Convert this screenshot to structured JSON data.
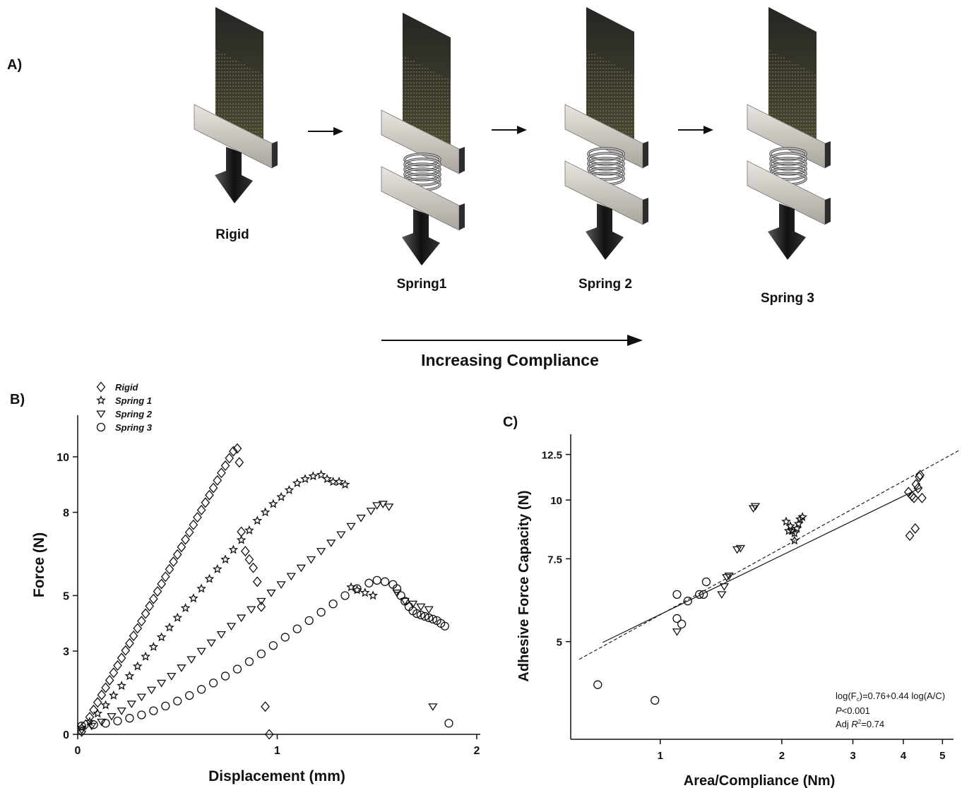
{
  "panel_a": {
    "label": "A)",
    "setups": [
      {
        "name": "Rigid",
        "springs": 0
      },
      {
        "name": "Spring1",
        "springs": 1
      },
      {
        "name": "Spring 2",
        "springs": 1
      },
      {
        "name": "Spring 3",
        "springs": 1
      }
    ],
    "compliance_label": "Increasing Compliance"
  },
  "chart_data": [
    {
      "panel_label": "B)",
      "type": "scatter",
      "xlabel": "Displacement (mm)",
      "ylabel": "Force (N)",
      "xlim": [
        0,
        2
      ],
      "ylim": [
        0,
        11.5
      ],
      "x_ticks": [
        0,
        1,
        2
      ],
      "y_ticks": [
        0,
        3,
        5,
        8,
        10
      ],
      "grid": false,
      "legend_position": "top-left",
      "series": [
        {
          "name": "Rigid",
          "marker": "diamond",
          "x": [
            0.02,
            0.04,
            0.06,
            0.08,
            0.1,
            0.12,
            0.14,
            0.16,
            0.18,
            0.2,
            0.22,
            0.24,
            0.26,
            0.28,
            0.3,
            0.32,
            0.34,
            0.36,
            0.38,
            0.4,
            0.42,
            0.44,
            0.46,
            0.48,
            0.5,
            0.52,
            0.54,
            0.56,
            0.58,
            0.6,
            0.62,
            0.64,
            0.66,
            0.68,
            0.7,
            0.72,
            0.74,
            0.76,
            0.78,
            0.8,
            0.81,
            0.82,
            0.84,
            0.86,
            0.88,
            0.9,
            0.92,
            0.94,
            0.96
          ],
          "y": [
            0.1,
            0.35,
            0.62,
            0.88,
            1.15,
            1.42,
            1.68,
            1.95,
            2.22,
            2.48,
            2.75,
            3.02,
            3.28,
            3.55,
            3.82,
            4.08,
            4.35,
            4.62,
            4.88,
            5.15,
            5.42,
            5.68,
            5.95,
            6.22,
            6.48,
            6.75,
            7.02,
            7.28,
            7.55,
            7.82,
            8.08,
            8.35,
            8.62,
            8.88,
            9.15,
            9.42,
            9.68,
            9.95,
            10.2,
            10.3,
            9.8,
            7.3,
            6.6,
            6.3,
            6.0,
            5.5,
            4.6,
            1.0,
            0.0
          ]
        },
        {
          "name": "Spring 1",
          "marker": "star",
          "x": [
            0.02,
            0.06,
            0.1,
            0.14,
            0.18,
            0.22,
            0.26,
            0.3,
            0.34,
            0.38,
            0.42,
            0.46,
            0.5,
            0.54,
            0.58,
            0.62,
            0.66,
            0.7,
            0.74,
            0.78,
            0.82,
            0.86,
            0.9,
            0.94,
            0.98,
            1.02,
            1.06,
            1.1,
            1.14,
            1.18,
            1.22,
            1.25,
            1.28,
            1.31,
            1.34,
            1.37,
            1.4,
            1.44,
            1.48
          ],
          "y": [
            0.25,
            0.45,
            0.75,
            1.05,
            1.4,
            1.75,
            2.1,
            2.45,
            2.8,
            3.15,
            3.5,
            3.85,
            4.2,
            4.55,
            4.9,
            5.25,
            5.6,
            5.95,
            6.3,
            6.65,
            7.0,
            7.35,
            7.7,
            8.0,
            8.3,
            8.55,
            8.8,
            9.05,
            9.2,
            9.3,
            9.35,
            9.2,
            9.1,
            9.1,
            9.0,
            5.3,
            5.2,
            5.1,
            5.0
          ]
        },
        {
          "name": "Spring 2",
          "marker": "triangle-down",
          "x": [
            0.02,
            0.07,
            0.12,
            0.17,
            0.22,
            0.27,
            0.32,
            0.37,
            0.42,
            0.47,
            0.52,
            0.57,
            0.62,
            0.67,
            0.72,
            0.77,
            0.82,
            0.87,
            0.92,
            0.97,
            1.02,
            1.07,
            1.12,
            1.17,
            1.22,
            1.27,
            1.32,
            1.37,
            1.42,
            1.47,
            1.5,
            1.53,
            1.56,
            1.6,
            1.64,
            1.68,
            1.72,
            1.76,
            1.78
          ],
          "y": [
            0.15,
            0.3,
            0.45,
            0.65,
            0.85,
            1.1,
            1.35,
            1.6,
            1.85,
            2.1,
            2.4,
            2.7,
            3.0,
            3.3,
            3.6,
            3.9,
            4.2,
            4.5,
            4.8,
            5.1,
            5.4,
            5.7,
            6.0,
            6.3,
            6.6,
            6.9,
            7.2,
            7.5,
            7.8,
            8.05,
            8.25,
            8.3,
            8.2,
            5.1,
            4.8,
            4.7,
            4.6,
            4.5,
            1.0
          ]
        },
        {
          "name": "Spring 3",
          "marker": "circle",
          "x": [
            0.02,
            0.08,
            0.14,
            0.2,
            0.26,
            0.32,
            0.38,
            0.44,
            0.5,
            0.56,
            0.62,
            0.68,
            0.74,
            0.8,
            0.86,
            0.92,
            0.98,
            1.04,
            1.1,
            1.16,
            1.22,
            1.28,
            1.34,
            1.4,
            1.46,
            1.5,
            1.54,
            1.58,
            1.6,
            1.62,
            1.64,
            1.66,
            1.68,
            1.7,
            1.72,
            1.74,
            1.76,
            1.78,
            1.8,
            1.82,
            1.84,
            1.86
          ],
          "y": [
            0.3,
            0.35,
            0.4,
            0.48,
            0.58,
            0.7,
            0.85,
            1.02,
            1.2,
            1.4,
            1.62,
            1.85,
            2.1,
            2.35,
            2.62,
            2.9,
            3.2,
            3.5,
            3.8,
            4.1,
            4.4,
            4.7,
            5.0,
            5.25,
            5.45,
            5.55,
            5.5,
            5.4,
            5.25,
            5.0,
            4.8,
            4.6,
            4.45,
            4.35,
            4.3,
            4.25,
            4.2,
            4.15,
            4.1,
            4.0,
            3.9,
            0.4
          ]
        }
      ]
    },
    {
      "panel_label": "C)",
      "type": "scatter",
      "xlabel": "Area/Compliance (Nm)",
      "ylabel": "Adhesive Force Capacity (N)",
      "x_scale": "log",
      "y_scale": "log",
      "xlim": [
        0.6,
        5.5
      ],
      "ylim": [
        3.1,
        13.8
      ],
      "x_ticks": [
        1,
        2,
        3,
        4,
        5
      ],
      "y_ticks": [
        5,
        7.5,
        10,
        12.5
      ],
      "y_tick_labels": [
        "5",
        "7.5",
        "10",
        "12.5"
      ],
      "grid": false,
      "equation_lines": [
        "log(F",
        "c",
        ")=0.76+0.44 log(A/C)",
        "P",
        "<0.001",
        "Adj ",
        "R",
        "2",
        "=0.74"
      ],
      "series": [
        {
          "marker": "diamond",
          "x": [
            4.12,
            4.2,
            4.25,
            4.3,
            4.35,
            4.38,
            4.4,
            4.45,
            4.15,
            4.28
          ],
          "y": [
            10.4,
            10.2,
            10.1,
            10.8,
            10.6,
            11.2,
            11.3,
            10.1,
            8.4,
            8.7
          ]
        },
        {
          "marker": "star",
          "x": [
            2.05,
            2.1,
            2.12,
            2.15,
            2.18,
            2.2,
            2.22,
            2.25,
            2.15,
            2.08
          ],
          "y": [
            9.0,
            8.8,
            8.6,
            8.5,
            8.7,
            8.9,
            9.1,
            9.2,
            8.2,
            8.6
          ]
        },
        {
          "marker": "triangle-down",
          "x": [
            1.1,
            1.42,
            1.44,
            1.46,
            1.48,
            1.55,
            1.58,
            1.7,
            1.72
          ],
          "y": [
            5.25,
            6.3,
            6.55,
            6.85,
            6.9,
            7.85,
            7.9,
            9.6,
            9.7
          ]
        },
        {
          "marker": "circle",
          "x": [
            0.7,
            0.97,
            1.1,
            1.1,
            1.13,
            1.17,
            1.25,
            1.28,
            1.3
          ],
          "y": [
            4.05,
            3.75,
            6.3,
            5.6,
            5.45,
            6.1,
            6.3,
            6.3,
            6.7
          ]
        }
      ]
    }
  ]
}
